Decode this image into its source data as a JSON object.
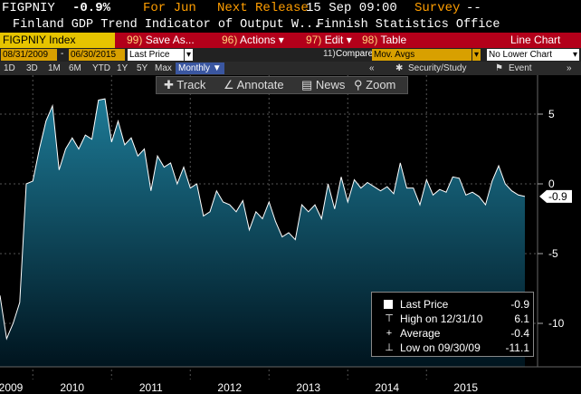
{
  "header": {
    "ticker": "FIGPNIY",
    "change": "-0.9%",
    "period": "For Jun",
    "next_release_label": "Next Release",
    "next_release_value": "15 Sep 09:00",
    "survey_label": "Survey",
    "survey_value": "--",
    "description": "Finland GDP Trend Indicator of Output W...",
    "source": "Finnish Statistics Office"
  },
  "menubar": {
    "security": "FIGPNIY Index",
    "save": {
      "num": "99)",
      "label": "Save As..."
    },
    "actions": {
      "num": "96)",
      "label": "Actions"
    },
    "edit": {
      "num": "97)",
      "label": "Edit"
    },
    "table": {
      "num": "98)",
      "label": "Table"
    },
    "view": "Line Chart"
  },
  "datebar": {
    "start": "08/31/2009",
    "dash": "-",
    "end": "06/30/2015",
    "field": "Last Price",
    "compare_num": "11)",
    "compare_label": "Compare",
    "compare_value": "Mov. Avgs",
    "lower_chart": "No Lower Chart"
  },
  "periods": [
    "1D",
    "3D",
    "1M",
    "6M",
    "YTD",
    "1Y",
    "5Y",
    "Max"
  ],
  "period_selected": "Monthly",
  "security_study": "Security/Study",
  "event": "Event",
  "tools": {
    "track": "Track",
    "annotate": "Annotate",
    "news": "News",
    "zoom": "Zoom"
  },
  "chart_data": {
    "type": "area",
    "x_start": "2009-08",
    "x_end": "2015-06",
    "x_tick_labels": [
      "2009",
      "2010",
      "2011",
      "2012",
      "2013",
      "2014",
      "2015"
    ],
    "y_tick_labels": [
      "5",
      "0",
      "-5",
      "-10"
    ],
    "ylim": [
      -13,
      6
    ],
    "last_value_label": "-0.9",
    "series": [
      {
        "values": [
          -8.0,
          -11.1,
          -10.0,
          -8.5,
          0.0,
          0.2,
          2.5,
          4.5,
          5.6,
          1.0,
          2.5,
          3.3,
          2.5,
          3.5,
          3.2,
          6.0,
          6.1,
          3.0,
          4.5,
          2.8,
          3.3,
          2.0,
          2.5,
          -0.5,
          2.0,
          1.2,
          1.5,
          0.0,
          1.2,
          -0.3,
          0.0,
          -2.3,
          -2.0,
          -0.5,
          -1.3,
          -1.5,
          -2.0,
          -1.2,
          -3.3,
          -2.0,
          -2.5,
          -1.3,
          -2.7,
          -3.8,
          -3.5,
          -4.0,
          -1.5,
          -2.0,
          -1.5,
          -2.5,
          0.0,
          -1.8,
          0.5,
          -1.3,
          0.3,
          -0.3,
          0.1,
          -0.2,
          -0.5,
          -0.2,
          -0.7,
          1.5,
          -0.3,
          -0.3,
          -1.5,
          0.3,
          -0.8,
          -0.4,
          -0.6,
          0.5,
          0.4,
          -0.8,
          -0.6,
          -0.9,
          -1.5,
          0.2,
          1.3,
          0.0,
          -0.5,
          -0.8,
          -0.9
        ]
      }
    ]
  },
  "legend": {
    "last_price_label": "Last Price",
    "last_price_value": "-0.9",
    "high_label": "High on 12/31/10",
    "high_value": "6.1",
    "average_label": "Average",
    "average_value": "-0.4",
    "low_label": "Low on 09/30/09",
    "low_value": "-11.1"
  },
  "colors": {
    "accent": "#ff9e00",
    "menubar": "#b3001a",
    "area_top": "#1a6f8c",
    "area_bottom": "#001018"
  }
}
